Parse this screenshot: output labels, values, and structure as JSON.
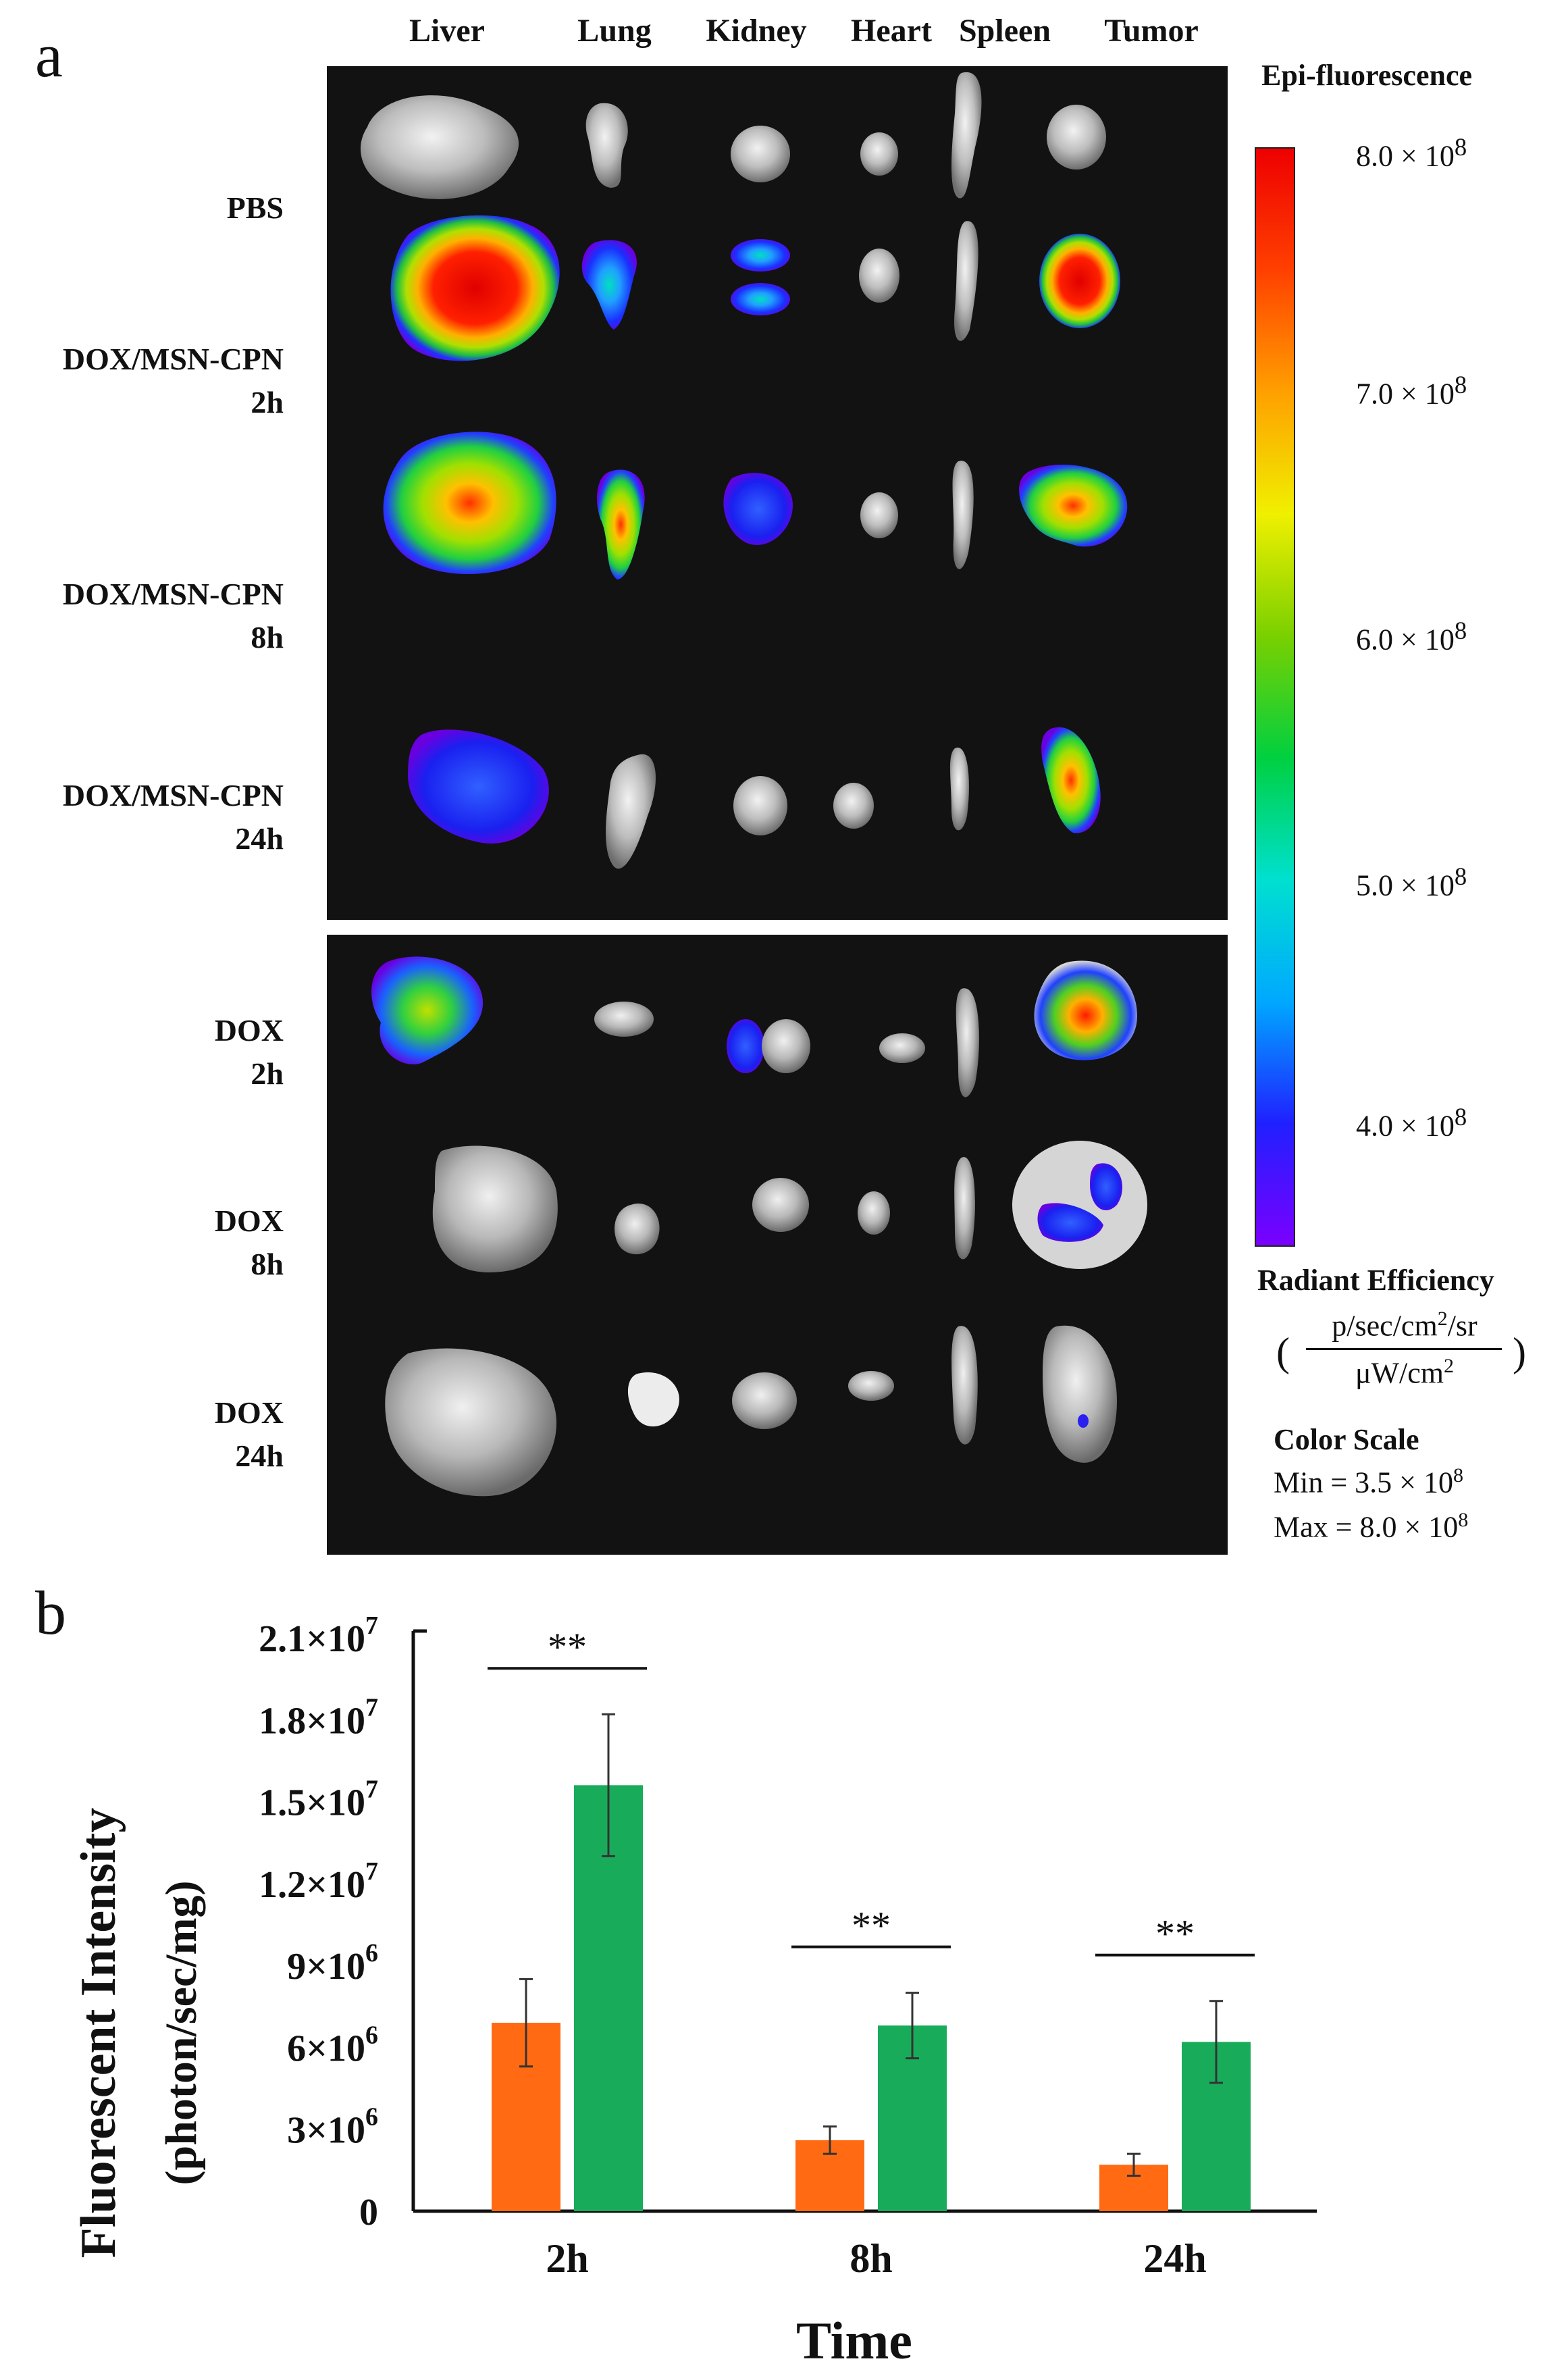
{
  "panel_a": {
    "letter": "a",
    "organs": [
      "Liver",
      "Lung",
      "Kidney",
      "Heart",
      "Spleen",
      "Tumor"
    ],
    "rows": [
      {
        "line1": "PBS",
        "line2": ""
      },
      {
        "line1": "DOX/MSN-CPN",
        "line2": "2h"
      },
      {
        "line1": "DOX/MSN-CPN",
        "line2": "8h"
      },
      {
        "line1": "DOX/MSN-CPN",
        "line2": "24h"
      },
      {
        "line1": "DOX",
        "line2": "2h"
      },
      {
        "line1": "DOX",
        "line2": "8h"
      },
      {
        "line1": "DOX",
        "line2": "24h"
      }
    ],
    "colorbar": {
      "title": "Epi-fluorescence",
      "ticks": [
        {
          "mant": "8.0 × 10",
          "exp": "8"
        },
        {
          "mant": "7.0 × 10",
          "exp": "8"
        },
        {
          "mant": "6.0 × 10",
          "exp": "8"
        },
        {
          "mant": "5.0 × 10",
          "exp": "8"
        },
        {
          "mant": "4.0 × 10",
          "exp": "8"
        }
      ],
      "units_title": "Radiant  Efficiency",
      "unit_numerator": "p/sec/cm",
      "unit_numerator_sup": "2",
      "unit_numerator_tail": "/sr",
      "unit_denominator": "μW/cm",
      "unit_denominator_sup": "2",
      "paren_open": "(",
      "paren_close": ")",
      "color_scale_label": "Color Scale",
      "min_text": "Min = 3.5 × 10",
      "min_exp": "8",
      "max_text": "Max = 8.0 × 10",
      "max_exp": "8",
      "gradient": [
        "#7a00ff",
        "#2020ff",
        "#00a8ff",
        "#00e0d0",
        "#00d040",
        "#7ad000",
        "#f0f000",
        "#ffa000",
        "#ff4000",
        "#ee0000"
      ]
    }
  },
  "chart_data": {
    "type": "bar",
    "panel_letter": "b",
    "categories": [
      "2h",
      "8h",
      "24h"
    ],
    "series": [
      {
        "values": [
          6900000,
          2600000,
          1700000
        ],
        "errors": [
          1600000,
          500000,
          400000
        ],
        "color": "#ff6a13"
      },
      {
        "values": [
          15600000,
          6800000,
          6200000
        ],
        "errors": [
          2600000,
          1200000,
          1500000
        ],
        "color": "#18ac5a"
      }
    ],
    "xlabel": "Time",
    "ylabel_line1": "Fluorescent Intensity",
    "ylabel_line2": "(photon/sec/mg)",
    "ylim": [
      0,
      21000000
    ],
    "yticks": [
      {
        "mant": "0",
        "exp": ""
      },
      {
        "mant": "3×10",
        "exp": "6"
      },
      {
        "mant": "6×10",
        "exp": "6"
      },
      {
        "mant": "9×10",
        "exp": "6"
      },
      {
        "mant": "1.2×10",
        "exp": "7"
      },
      {
        "mant": "1.5×10",
        "exp": "7"
      },
      {
        "mant": "1.8×10",
        "exp": "7"
      },
      {
        "mant": "2.1×10",
        "exp": "7"
      }
    ],
    "significance": [
      "**",
      "**",
      "**"
    ]
  }
}
